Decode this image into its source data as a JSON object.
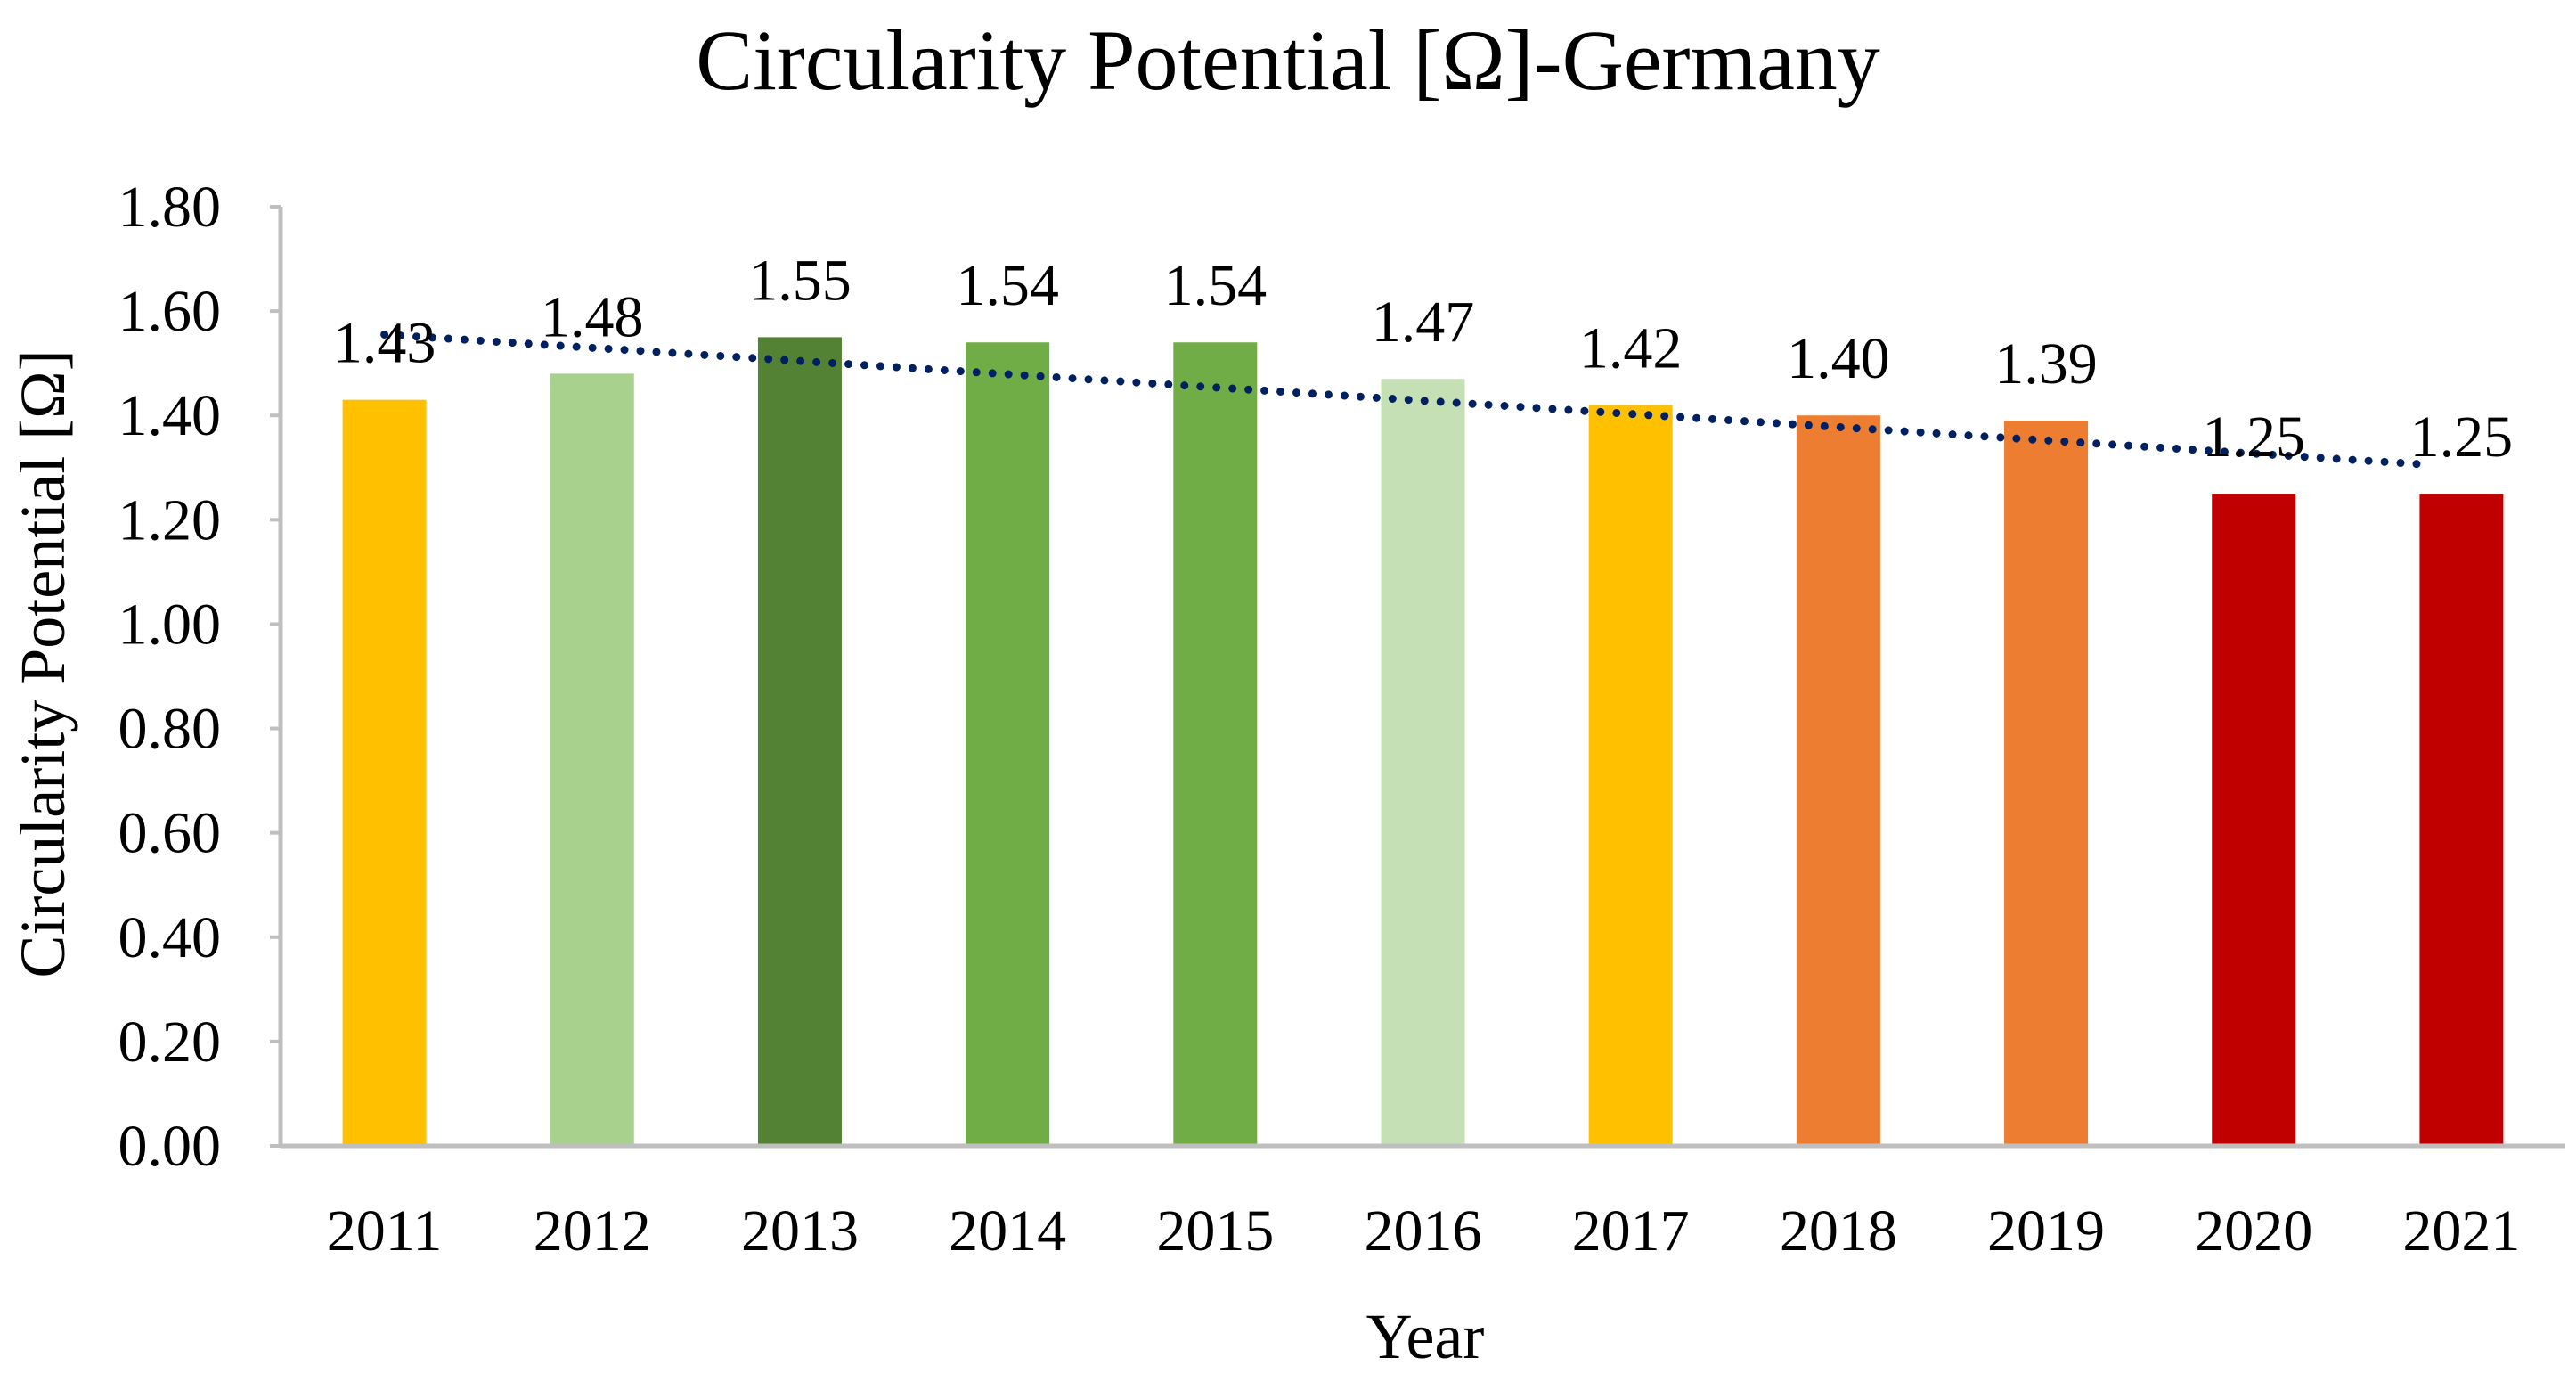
{
  "chart_data": {
    "type": "bar",
    "title": "Circularity Potential [Ω]-Germany",
    "xlabel": "Year",
    "ylabel": "Circularity Potential [Ω]",
    "categories": [
      "2011",
      "2012",
      "2013",
      "2014",
      "2015",
      "2016",
      "2017",
      "2018",
      "2019",
      "2020",
      "2021"
    ],
    "values": [
      1.43,
      1.48,
      1.55,
      1.54,
      1.54,
      1.47,
      1.42,
      1.4,
      1.39,
      1.25,
      1.25
    ],
    "data_labels": [
      "1.43",
      "1.48",
      "1.55",
      "1.54",
      "1.54",
      "1.47",
      "1.42",
      "1.40",
      "1.39",
      "1.25",
      "1.25"
    ],
    "bar_colors": [
      "#FFC000",
      "#A9D18E",
      "#548235",
      "#70AD47",
      "#70AD47",
      "#C5E0B4",
      "#FFC000",
      "#ED7D31",
      "#ED7D31",
      "#C00000",
      "#C00000"
    ],
    "ylim": [
      0,
      1.8
    ],
    "yticks": [
      0,
      0.2,
      0.4,
      0.6,
      0.8,
      1.0,
      1.2,
      1.4,
      1.6,
      1.8
    ],
    "ytick_labels": [
      "0.00",
      "0.20",
      "0.40",
      "0.60",
      "0.80",
      "1.00",
      "1.20",
      "1.40",
      "1.60",
      "1.80"
    ],
    "trendline": {
      "type": "linear",
      "style": "dotted",
      "color": "#002060",
      "start_value": 1.555,
      "end_value": 1.305
    },
    "axis_color": "#BFBFBF",
    "grid": false,
    "legend": "none"
  }
}
